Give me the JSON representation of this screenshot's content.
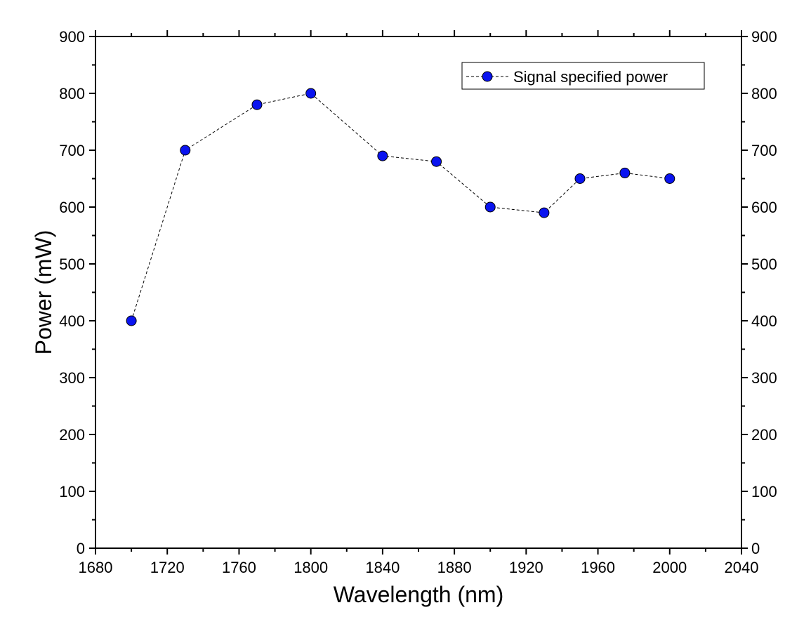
{
  "chart_data": {
    "type": "line",
    "title": "",
    "xlabel": "Wavelength (nm)",
    "ylabel": "Power (mW)",
    "xlim": [
      1680,
      2040
    ],
    "ylim": [
      0,
      900
    ],
    "x_ticks": [
      1680,
      1720,
      1760,
      1800,
      1840,
      1880,
      1920,
      1960,
      2000,
      2040
    ],
    "y_ticks": [
      0,
      100,
      200,
      300,
      400,
      500,
      600,
      700,
      800,
      900
    ],
    "right_axis_mirrors_left": true,
    "grid": false,
    "legend": {
      "position": "top-right",
      "entries": [
        "Signal specified power"
      ]
    },
    "series": [
      {
        "name": "Signal specified power",
        "line_style": "dashed",
        "marker": "circle",
        "color": "#0a14f0",
        "x": [
          1700,
          1730,
          1770,
          1800,
          1840,
          1870,
          1900,
          1930,
          1950,
          1975,
          2000
        ],
        "y": [
          400,
          700,
          780,
          800,
          690,
          680,
          600,
          590,
          650,
          660,
          650
        ]
      }
    ]
  }
}
